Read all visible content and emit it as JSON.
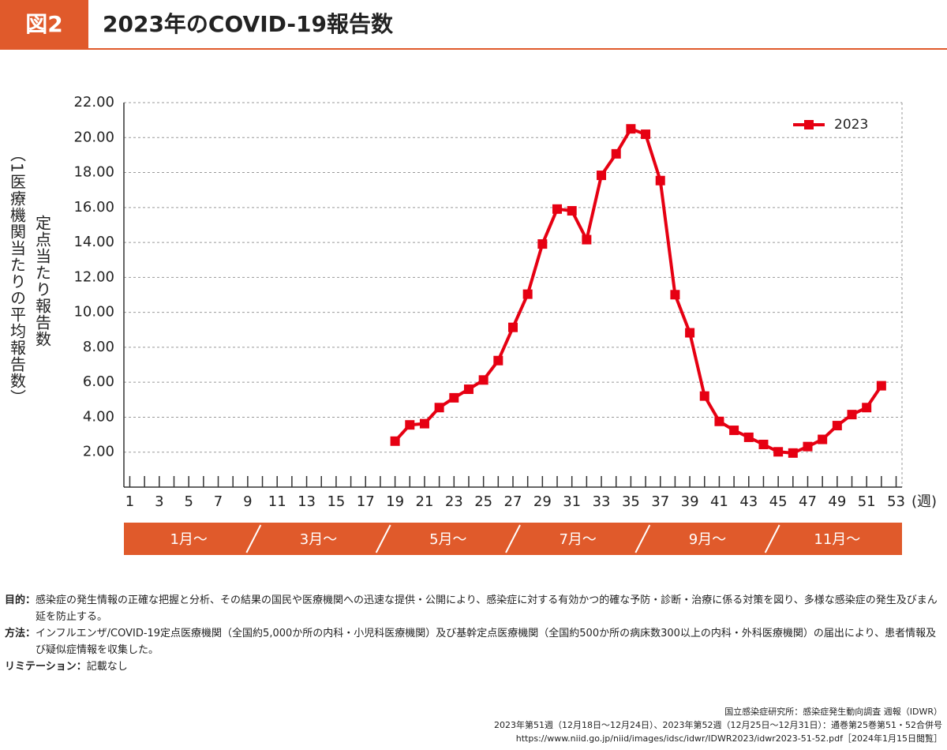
{
  "header": {
    "figure_label": "図2",
    "title": "2023年のCOVID-19報告数"
  },
  "chart_data": {
    "type": "line",
    "ylabel": "定点当たり報告数",
    "ylabel2": "（1医療機関当たりの平均報告数）",
    "xlabel": "(週)",
    "x": [
      19,
      20,
      21,
      22,
      23,
      24,
      25,
      26,
      27,
      28,
      29,
      30,
      31,
      32,
      33,
      34,
      35,
      36,
      37,
      38,
      39,
      40,
      41,
      42,
      43,
      44,
      45,
      46,
      47,
      48,
      49,
      50,
      51,
      52
    ],
    "series": [
      {
        "name": "2023",
        "color": "#e60012",
        "values": [
          2.63,
          3.56,
          3.63,
          4.55,
          5.11,
          5.6,
          6.13,
          7.24,
          9.14,
          11.04,
          13.91,
          15.91,
          15.81,
          14.16,
          17.84,
          19.07,
          20.5,
          20.19,
          17.54,
          11.01,
          8.83,
          5.21,
          3.76,
          3.25,
          2.85,
          2.44,
          2.02,
          1.95,
          2.32,
          2.73,
          3.52,
          4.15,
          4.55,
          5.8
        ]
      }
    ],
    "xlim": [
      0.6,
      53.4
    ],
    "xticks": [
      1,
      3,
      5,
      7,
      9,
      11,
      13,
      15,
      17,
      19,
      21,
      23,
      25,
      27,
      29,
      31,
      33,
      35,
      37,
      39,
      41,
      43,
      45,
      47,
      49,
      51,
      53
    ],
    "xminorticks": [
      2,
      4,
      6,
      8,
      10,
      12,
      14,
      16,
      18,
      20,
      22,
      24,
      26,
      28,
      30,
      32,
      34,
      36,
      38,
      40,
      42,
      44,
      46,
      48,
      50,
      52
    ],
    "ylim": [
      0,
      22
    ],
    "yticks": [
      {
        "value": 2,
        "label": "2.00"
      },
      {
        "value": 4,
        "label": "4.00"
      },
      {
        "value": 6,
        "label": "6.00"
      },
      {
        "value": 8,
        "label": "8.00"
      },
      {
        "value": 10,
        "label": "10.00"
      },
      {
        "value": 12,
        "label": "12.00"
      },
      {
        "value": 14,
        "label": "14.00"
      },
      {
        "value": 16,
        "label": "16.00"
      },
      {
        "value": 18,
        "label": "18.00"
      },
      {
        "value": 20,
        "label": "20.00"
      },
      {
        "value": 22,
        "label": "22.00"
      }
    ],
    "grid": true,
    "legend": "upper right",
    "month_labels": [
      "1月〜",
      "3月〜",
      "5月〜",
      "7月〜",
      "9月〜",
      "11月〜"
    ]
  },
  "notes": [
    {
      "label": "目的：",
      "text": "感染症の発生情報の正確な把握と分析、その結果の国民や医療機関への迅速な提供・公開により、感染症に対する有効かつ的確な予防・診断・治療に係る対策を図り、多様な感染症の発生及びまん延を防止する。"
    },
    {
      "label": "方法：",
      "text": "インフルエンザ/COVID-19定点医療機関（全国約5,000か所の内科・小児科医療機関）及び基幹定点医療機関（全国約500か所の病床数300以上の内科・外科医療機関）の届出により、患者情報及び疑似症情報を収集した。"
    },
    {
      "label": "リミテーション：",
      "text": "記載なし"
    }
  ],
  "source": [
    "国立感染症研究所：感染症発生動向調査 週報（IDWR）",
    "2023年第51週（12月18日〜12月24日）、2023年第52週（12月25日〜12月31日）：通巻第25巻第51・52合併号",
    "https://www.niid.go.jp/niid/images/idsc/idwr/IDWR2023/idwr2023-51-52.pdf［2024年1月15日閲覧］"
  ]
}
